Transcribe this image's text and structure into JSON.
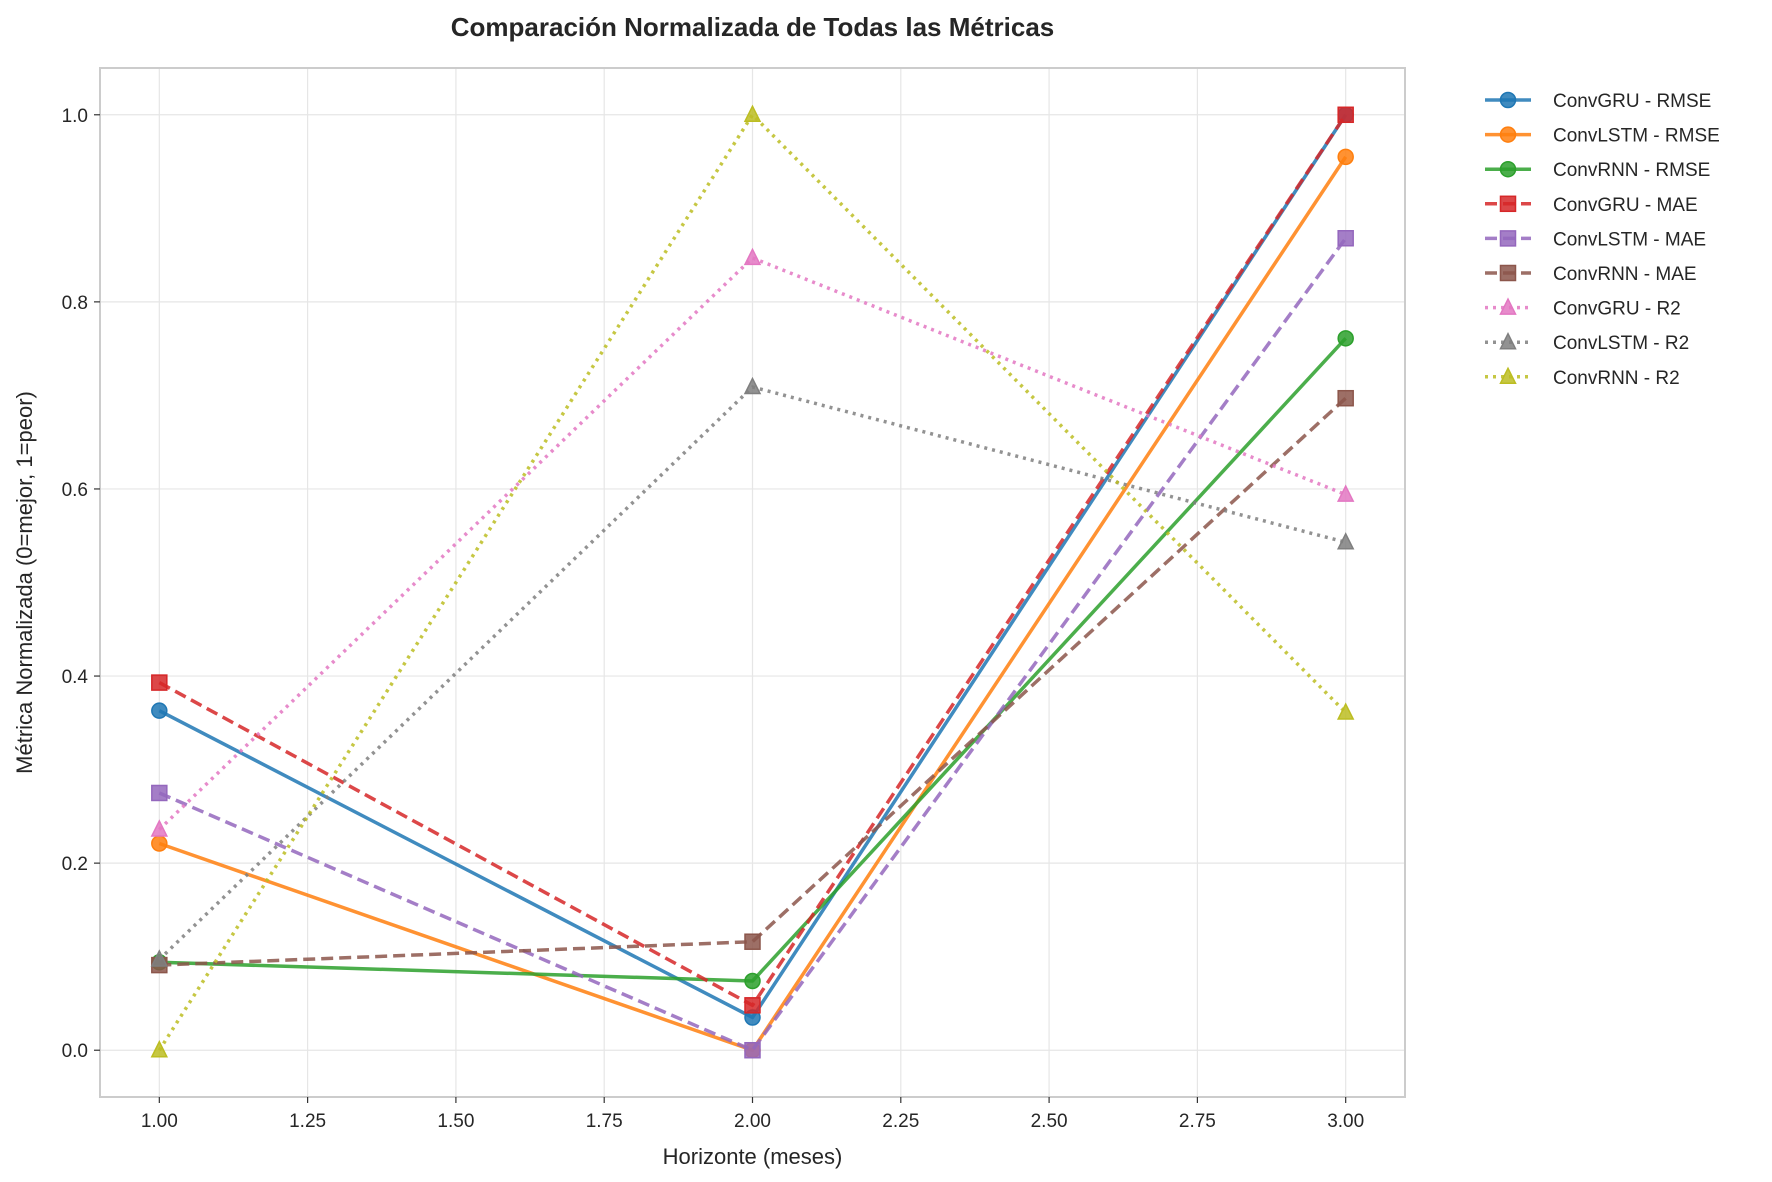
{
  "chart_data": {
    "type": "line",
    "title": "Comparación Normalizada de Todas las Métricas",
    "xlabel": "Horizonte (meses)",
    "ylabel": "Métrica Normalizada (0=mejor, 1=peor)",
    "xlim": [
      0.9,
      3.1
    ],
    "ylim": [
      -0.05,
      1.05
    ],
    "xticks": [
      1.0,
      1.25,
      1.5,
      1.75,
      2.0,
      2.25,
      2.5,
      2.75,
      3.0
    ],
    "xtick_labels": [
      "1.00",
      "1.25",
      "1.50",
      "1.75",
      "2.00",
      "2.25",
      "2.50",
      "2.75",
      "3.00"
    ],
    "yticks": [
      0.0,
      0.2,
      0.4,
      0.6,
      0.8,
      1.0
    ],
    "ytick_labels": [
      "0.0",
      "0.2",
      "0.4",
      "0.6",
      "0.8",
      "1.0"
    ],
    "grid": true,
    "legend_position": "outside-right-top",
    "x": [
      1,
      2,
      3
    ],
    "series": [
      {
        "name": "ConvGRU - RMSE",
        "values": [
          0.363,
          0.035,
          1.0
        ],
        "color": "#1f77b4",
        "line": "solid",
        "marker": "circle"
      },
      {
        "name": "ConvLSTM - RMSE",
        "values": [
          0.221,
          0.0,
          0.955
        ],
        "color": "#ff7f0e",
        "line": "solid",
        "marker": "circle"
      },
      {
        "name": "ConvRNN - RMSE",
        "values": [
          0.094,
          0.074,
          0.761
        ],
        "color": "#2ca02c",
        "line": "solid",
        "marker": "circle"
      },
      {
        "name": "ConvGRU - MAE",
        "values": [
          0.393,
          0.048,
          1.0
        ],
        "color": "#d62728",
        "line": "dashed",
        "marker": "square"
      },
      {
        "name": "ConvLSTM - MAE",
        "values": [
          0.275,
          0.0,
          0.868
        ],
        "color": "#9467bd",
        "line": "dashed",
        "marker": "square"
      },
      {
        "name": "ConvRNN - MAE",
        "values": [
          0.091,
          0.116,
          0.697
        ],
        "color": "#8c564b",
        "line": "dashed",
        "marker": "square"
      },
      {
        "name": "ConvGRU - R2",
        "values": [
          0.236,
          0.847,
          0.594
        ],
        "color": "#e377c2",
        "line": "dotted",
        "marker": "triangle"
      },
      {
        "name": "ConvLSTM - R2",
        "values": [
          0.097,
          0.709,
          0.543
        ],
        "color": "#7f7f7f",
        "line": "dotted",
        "marker": "triangle"
      },
      {
        "name": "ConvRNN - R2",
        "values": [
          0.0,
          1.0,
          0.361
        ],
        "color": "#bcbd22",
        "line": "dotted",
        "marker": "triangle"
      }
    ]
  }
}
